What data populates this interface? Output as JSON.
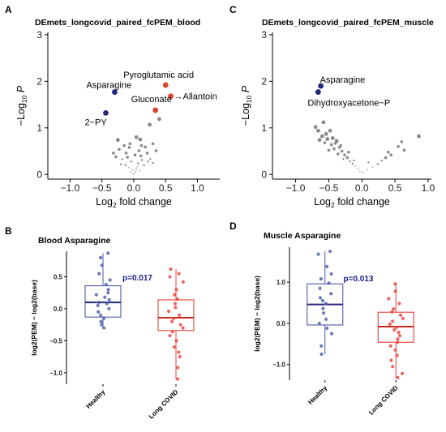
{
  "colors": {
    "down": "#26267a",
    "up": "#d9432e",
    "ns": "#8a8a8a",
    "healthy": "#4a5aa8",
    "longcovid": "#e8403a"
  },
  "chart_data": [
    {
      "panel": "A",
      "type": "scatter",
      "title": "DEmets_longcovid_paired_fcPEM_blood",
      "xlabel": "Log2 fold change",
      "ylabel": "-Log10 P",
      "xlim": [
        -1.35,
        1.35
      ],
      "ylim": [
        -0.1,
        3.05
      ],
      "xticks": [
        "-1.0",
        "-0.5",
        "0.0",
        "0.5",
        "1.0"
      ],
      "yticks": [
        "0",
        "1",
        "2",
        "3"
      ],
      "highlighted": [
        {
          "label": "Pyroglutamic acid",
          "x": 0.5,
          "y": 1.92,
          "group": "up"
        },
        {
          "label": "→Allantoin",
          "x": 0.58,
          "y": 1.68,
          "group": "up"
        },
        {
          "label": "Gluconate",
          "x": 0.34,
          "y": 1.38,
          "group": "up"
        },
        {
          "label": "Asparagine",
          "x": -0.3,
          "y": 1.77,
          "group": "down"
        },
        {
          "label": "2-PY",
          "x": -0.44,
          "y": 1.32,
          "group": "down"
        }
      ],
      "points": [
        [
          0.4,
          1.19
        ],
        [
          0.25,
          1.07
        ],
        [
          0.04,
          0.8
        ],
        [
          -0.25,
          0.74
        ],
        [
          0.1,
          0.75
        ],
        [
          -0.06,
          0.66
        ],
        [
          0.3,
          0.66
        ],
        [
          0.18,
          0.59
        ],
        [
          -0.15,
          0.62
        ],
        [
          -0.07,
          0.58
        ],
        [
          0.12,
          0.62
        ],
        [
          -0.23,
          0.54
        ],
        [
          0.35,
          0.51
        ],
        [
          -0.32,
          0.46
        ],
        [
          0.21,
          0.46
        ],
        [
          0.02,
          0.42
        ],
        [
          -0.1,
          0.37
        ],
        [
          0.26,
          0.33
        ],
        [
          -0.18,
          0.33
        ],
        [
          0.13,
          0.31
        ],
        [
          -0.04,
          0.28
        ],
        [
          0.07,
          0.24
        ],
        [
          -0.13,
          0.2
        ],
        [
          0.16,
          0.2
        ],
        [
          -0.08,
          0.15
        ],
        [
          0.04,
          0.13
        ],
        [
          -0.02,
          0.1
        ],
        [
          0.09,
          0.08
        ],
        [
          -0.05,
          0.05
        ],
        [
          0.01,
          0.03
        ],
        [
          0.06,
          0.17
        ],
        [
          -0.2,
          0.22
        ],
        [
          0.3,
          0.25
        ],
        [
          0.11,
          0.4
        ],
        [
          -0.28,
          0.38
        ],
        [
          0.22,
          0.28
        ],
        [
          -0.12,
          0.46
        ],
        [
          0.08,
          0.51
        ],
        [
          0.03,
          0.07
        ],
        [
          -0.01,
          0.01
        ]
      ]
    },
    {
      "panel": "C",
      "type": "scatter",
      "title": "DEmets_longcovid_paired_fcPEM_muscle",
      "xlabel": "Log2 fold change",
      "ylabel": "-Log10 P",
      "xlim": [
        -1.35,
        1.05
      ],
      "ylim": [
        -0.1,
        3.05
      ],
      "xticks": [
        "-1.0",
        "-0.5",
        "0.0",
        "0.5",
        "1.0"
      ],
      "yticks": [
        "0",
        "1",
        "2",
        "3"
      ],
      "highlighted": [
        {
          "label": "Asparagine",
          "x": -0.62,
          "y": 1.9,
          "group": "down"
        },
        {
          "label": "Dihydroxyacetone-P",
          "x": -0.66,
          "y": 1.77,
          "group": "down"
        }
      ],
      "points": [
        [
          -0.7,
          1.02
        ],
        [
          -0.58,
          1.12
        ],
        [
          -0.66,
          0.94
        ],
        [
          -0.48,
          0.94
        ],
        [
          -0.6,
          0.82
        ],
        [
          -0.52,
          0.76
        ],
        [
          -0.44,
          0.78
        ],
        [
          -0.38,
          0.72
        ],
        [
          -0.56,
          0.68
        ],
        [
          -0.46,
          0.64
        ],
        [
          -0.34,
          0.58
        ],
        [
          -0.42,
          0.55
        ],
        [
          -0.5,
          0.52
        ],
        [
          -0.3,
          0.5
        ],
        [
          -0.36,
          0.44
        ],
        [
          -0.26,
          0.42
        ],
        [
          -0.22,
          0.36
        ],
        [
          -0.28,
          0.33
        ],
        [
          -0.18,
          0.28
        ],
        [
          -0.14,
          0.23
        ],
        [
          -0.1,
          0.18
        ],
        [
          -0.06,
          0.13
        ],
        [
          -0.03,
          0.07
        ],
        [
          0.02,
          0.04
        ],
        [
          0.08,
          0.1
        ],
        [
          0.16,
          0.16
        ],
        [
          0.24,
          0.22
        ],
        [
          0.3,
          0.3
        ],
        [
          0.36,
          0.36
        ],
        [
          0.44,
          0.42
        ],
        [
          0.55,
          0.6
        ],
        [
          0.64,
          0.52
        ],
        [
          0.6,
          0.7
        ],
        [
          0.86,
          0.82
        ],
        [
          -0.4,
          0.67
        ],
        [
          -0.54,
          0.87
        ],
        [
          -0.64,
          0.74
        ],
        [
          -0.32,
          0.62
        ],
        [
          -0.2,
          0.48
        ],
        [
          0.1,
          0.26
        ],
        [
          0.4,
          0.48
        ],
        [
          -0.12,
          0.3
        ]
      ]
    },
    {
      "panel": "B",
      "type": "box",
      "title": "Blood Asparagine",
      "ylabel": "log2(PEM) - log2(base)",
      "ylim": [
        -1.18,
        0.9
      ],
      "yticks": [
        "-1.0",
        "-0.5",
        "0.0",
        "0.5"
      ],
      "categories": [
        "Healthy",
        "Long COVID"
      ],
      "pvalue": "p=0.017",
      "boxes": [
        {
          "name": "Healthy",
          "q1": -0.13,
          "median": 0.1,
          "q3": 0.36,
          "whisker_low": -0.3,
          "whisker_high": 0.87,
          "points": [
            0.87,
            0.8,
            0.68,
            0.55,
            0.45,
            0.38,
            0.3,
            0.25,
            0.22,
            0.18,
            0.14,
            0.1,
            0.08,
            0.05,
            0.0,
            -0.05,
            -0.1,
            -0.15,
            -0.2,
            -0.25,
            -0.3
          ]
        },
        {
          "name": "Long COVID",
          "q1": -0.34,
          "median": -0.14,
          "q3": 0.14,
          "whisker_low": -1.1,
          "whisker_high": 0.62,
          "points": [
            0.62,
            0.55,
            0.5,
            0.42,
            0.3,
            0.22,
            0.15,
            0.08,
            0.02,
            -0.04,
            -0.1,
            -0.15,
            -0.2,
            -0.25,
            -0.3,
            -0.36,
            -0.42,
            -0.5,
            -0.6,
            -0.68,
            -0.75,
            -0.92,
            -1.1
          ]
        }
      ]
    },
    {
      "panel": "D",
      "type": "box",
      "title": "Muscle Asparagine",
      "ylabel": "log2(PEM) - log2(base)",
      "ylim": [
        -1.38,
        1.85
      ],
      "yticks": [
        "-1.0",
        "0.0",
        "1.0"
      ],
      "categories": [
        "Healthy",
        "Long COVID"
      ],
      "pvalue": "p=0.013",
      "boxes": [
        {
          "name": "Healthy",
          "q1": -0.04,
          "median": 0.46,
          "q3": 0.96,
          "whisker_low": -0.75,
          "whisker_high": 1.75,
          "points": [
            1.75,
            1.68,
            1.38,
            1.2,
            1.08,
            0.98,
            0.85,
            0.72,
            0.62,
            0.55,
            0.48,
            0.36,
            0.25,
            0.1,
            0.0,
            -0.12,
            -0.25,
            -0.55,
            -0.75
          ]
        },
        {
          "name": "Long COVID",
          "q1": -0.46,
          "median": -0.08,
          "q3": 0.27,
          "whisker_low": -1.32,
          "whisker_high": 0.96,
          "points": [
            0.96,
            0.78,
            0.6,
            0.48,
            0.35,
            0.28,
            0.2,
            0.12,
            0.05,
            -0.02,
            -0.1,
            -0.16,
            -0.22,
            -0.3,
            -0.38,
            -0.46,
            -0.55,
            -0.65,
            -0.78,
            -0.9,
            -1.05,
            -1.22,
            -1.32
          ]
        }
      ]
    }
  ]
}
